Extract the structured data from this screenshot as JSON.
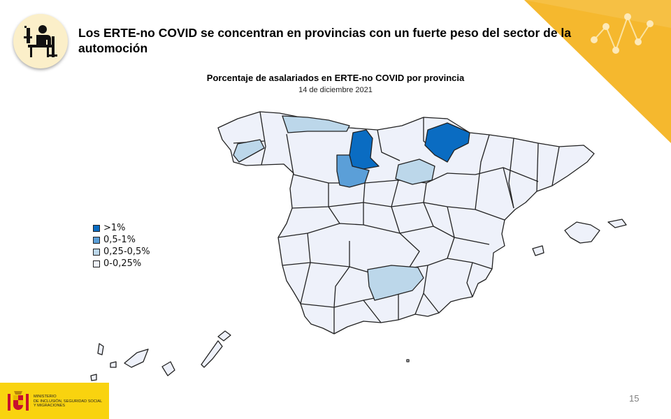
{
  "slide": {
    "title": "Los ERTE-no COVID se concentran en provincias con un fuerte peso del sector de la automoción",
    "page_number": "15"
  },
  "map": {
    "title": "Porcentaje de asalariados en ERTE-no COVID por provincia",
    "date": "14 de diciembre 2021",
    "legend": [
      {
        "label": ">1%",
        "color": "#0a6cc2"
      },
      {
        "label": "0,5-1%",
        "color": "#5b9fd8"
      },
      {
        "label": "0,25-0,5%",
        "color": "#bcd7ea"
      },
      {
        "label": "0-0,25%",
        "color": "#eef1fa"
      }
    ],
    "highlighted": [
      {
        "area": "Navarra",
        "class": ">1%"
      },
      {
        "area": "Burgos",
        "class": ">1%"
      },
      {
        "area": "Valladolid",
        "class": "0,5-1%"
      },
      {
        "area": "Asturias",
        "class": "0,25-0,5%"
      },
      {
        "area": "Pontevedra",
        "class": "0,25-0,5%"
      },
      {
        "area": "Soria",
        "class": "0,25-0,5%"
      },
      {
        "area": "Jaén",
        "class": "0,25-0,5%"
      }
    ]
  },
  "ministry": {
    "lines": [
      "MINISTERIO",
      "DE INCLUSIÓN, SEGURIDAD SOCIAL",
      "Y MIGRACIONES"
    ]
  },
  "colors": {
    "accent": "#f5b82e",
    "map_stroke": "#222222"
  },
  "icons": [
    "worker-at-desk-icon",
    "network-dots-icon",
    "coat-of-arms-icon"
  ]
}
